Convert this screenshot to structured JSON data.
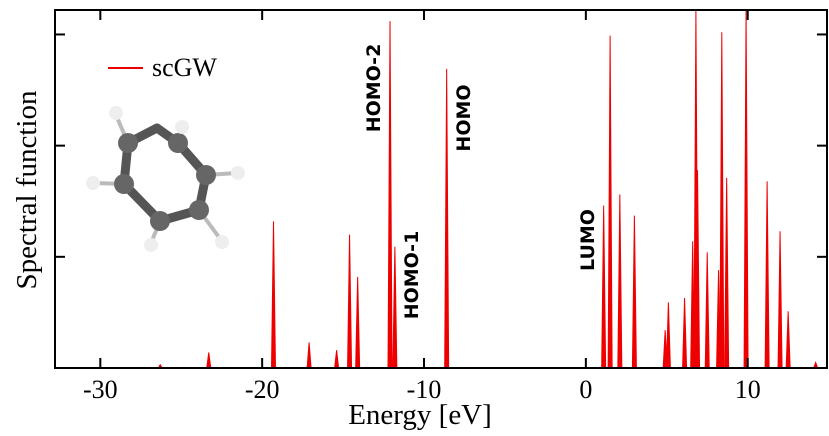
{
  "chart_data": {
    "type": "spectrum",
    "xlabel": "Energy [eV]",
    "ylabel": "Spectral function",
    "x": [
      -26.3,
      -23.3,
      -19.3,
      -17.1,
      -15.4,
      -14.6,
      -14.1,
      -12.1,
      -11.8,
      -8.6,
      1.1,
      1.5,
      2.1,
      3.0,
      4.9,
      5.1,
      6.1,
      6.6,
      6.8,
      6.9,
      7.5,
      8.2,
      8.4,
      8.7,
      9.9,
      11.2,
      12.0,
      12.5,
      14.2
    ],
    "series": [
      {
        "name": "scGW",
        "color": "#ee0000",
        "values": [
          0.03,
          0.14,
          1.32,
          0.23,
          0.16,
          1.2,
          0.82,
          3.12,
          1.09,
          2.69,
          1.46,
          2.99,
          1.56,
          1.37,
          0.34,
          0.59,
          0.63,
          1.14,
          3.22,
          1.78,
          1.04,
          0.88,
          3.02,
          1.71,
          3.22,
          1.68,
          1.23,
          0.51,
          0.05
        ]
      }
    ],
    "xlim": [
      -32.8,
      14.9
    ],
    "xticks": [
      -30,
      -20,
      -10,
      0,
      10
    ],
    "ylim": [
      0,
      3.22
    ],
    "yticks": [
      0,
      1,
      2,
      3
    ],
    "annotations": [
      "HOMO-2",
      "HOMO-1",
      "HOMO",
      "LUMO"
    ]
  }
}
